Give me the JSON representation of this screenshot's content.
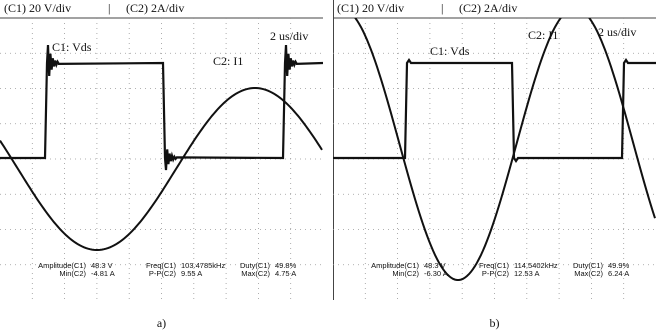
{
  "panels": [
    {
      "header_c1": "(C1) 20 V/div",
      "separator": "|",
      "header_c2": "(C2) 2A/div",
      "vds_label": "C1: Vds",
      "i1_label": "C2: I1",
      "timebase": "2 us/div",
      "measurements": [
        [
          {
            "label": "Amplitude(C1)",
            "value": "48.3 V"
          },
          {
            "label": "Freq(C1)",
            "value": "103.4785kHz"
          },
          {
            "label": "Duty(C1)",
            "value": "49.8%"
          }
        ],
        [
          {
            "label": "Min(C2)",
            "value": "-4.81 A"
          },
          {
            "label": "P-P(C2)",
            "value": "9.55 A"
          },
          {
            "label": "Max(C2)",
            "value": "4.75 A"
          }
        ]
      ],
      "caption": "a)"
    },
    {
      "header_c1": "(C1) 20 V/div",
      "separator": "|",
      "header_c2": "(C2) 2A/div",
      "vds_label": "C1: Vds",
      "i1_label": "C2: I1",
      "timebase": "2 us/div",
      "measurements": [
        [
          {
            "label": "Amplitude(C1)",
            "value": "48.3 V"
          },
          {
            "label": "Freq(C1)",
            "value": "114.5402kHz"
          },
          {
            "label": "Duty(C1)",
            "value": "49.9%"
          }
        ],
        [
          {
            "label": "Min(C2)",
            "value": "-6.30 A"
          },
          {
            "label": "P-P(C2)",
            "value": "12.53 A"
          },
          {
            "label": "Max(C2)",
            "value": "6.24 A"
          }
        ]
      ],
      "caption": "b)"
    }
  ]
}
